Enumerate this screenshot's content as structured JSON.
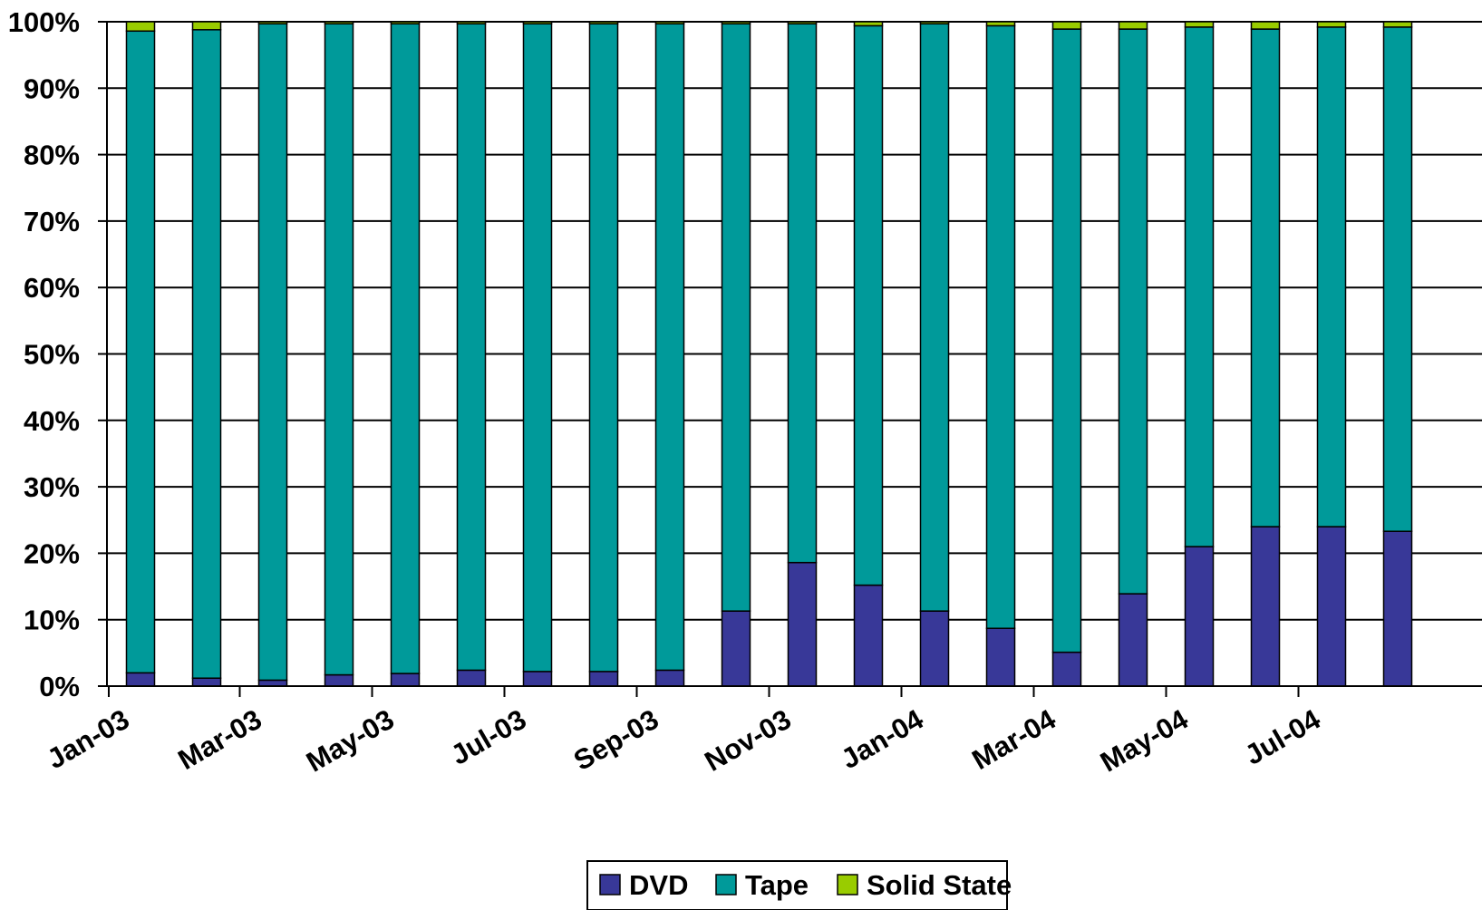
{
  "colors": {
    "DVD": "#383898",
    "Tape": "#009a9a",
    "Solid State": "#99cc00"
  },
  "chart_data": {
    "type": "bar",
    "stacked": true,
    "normalized": true,
    "title": "",
    "xlabel": "",
    "ylabel": "",
    "ylim": [
      0,
      100
    ],
    "ytick_labels": [
      "0%",
      "10%",
      "20%",
      "30%",
      "40%",
      "50%",
      "60%",
      "70%",
      "80%",
      "90%",
      "100%"
    ],
    "categories": [
      "Jan-03",
      "Feb-03",
      "Mar-03",
      "Apr-03",
      "May-03",
      "Jun-03",
      "Jul-03",
      "Aug-03",
      "Sep-03",
      "Oct-03",
      "Nov-03",
      "Dec-03",
      "Jan-04",
      "Feb-04",
      "Mar-04",
      "Apr-04",
      "May-04",
      "Jun-04",
      "Jul-04",
      "Aug-04"
    ],
    "xtick_labels": [
      "Jan-03",
      "Mar-03",
      "May-03",
      "Jul-03",
      "Sep-03",
      "Nov-03",
      "Jan-04",
      "Mar-04",
      "May-04",
      "Jul-04"
    ],
    "grid": true,
    "legend_position": "bottom",
    "series": [
      {
        "name": "DVD",
        "values": [
          2,
          1.2,
          0.9,
          1.7,
          1.9,
          2.4,
          2.2,
          2.2,
          2.4,
          11.3,
          18.6,
          15.2,
          11.3,
          8.7,
          5.1,
          13.9,
          21,
          24,
          24,
          23.3
        ]
      },
      {
        "name": "Tape",
        "values": [
          96.6,
          97.6,
          98.8,
          98,
          97.8,
          97.3,
          97.5,
          97.5,
          97.3,
          88.4,
          81.1,
          84.2,
          88.4,
          90.7,
          93.8,
          85,
          78.2,
          74.9,
          75.2,
          75.9
        ]
      },
      {
        "name": "Solid State",
        "values": [
          1.4,
          1.2,
          0.3,
          0.3,
          0.3,
          0.3,
          0.3,
          0.3,
          0.3,
          0.3,
          0.3,
          0.6,
          0.3,
          0.6,
          1.1,
          1.1,
          0.8,
          1.1,
          0.8,
          0.8
        ]
      }
    ]
  }
}
